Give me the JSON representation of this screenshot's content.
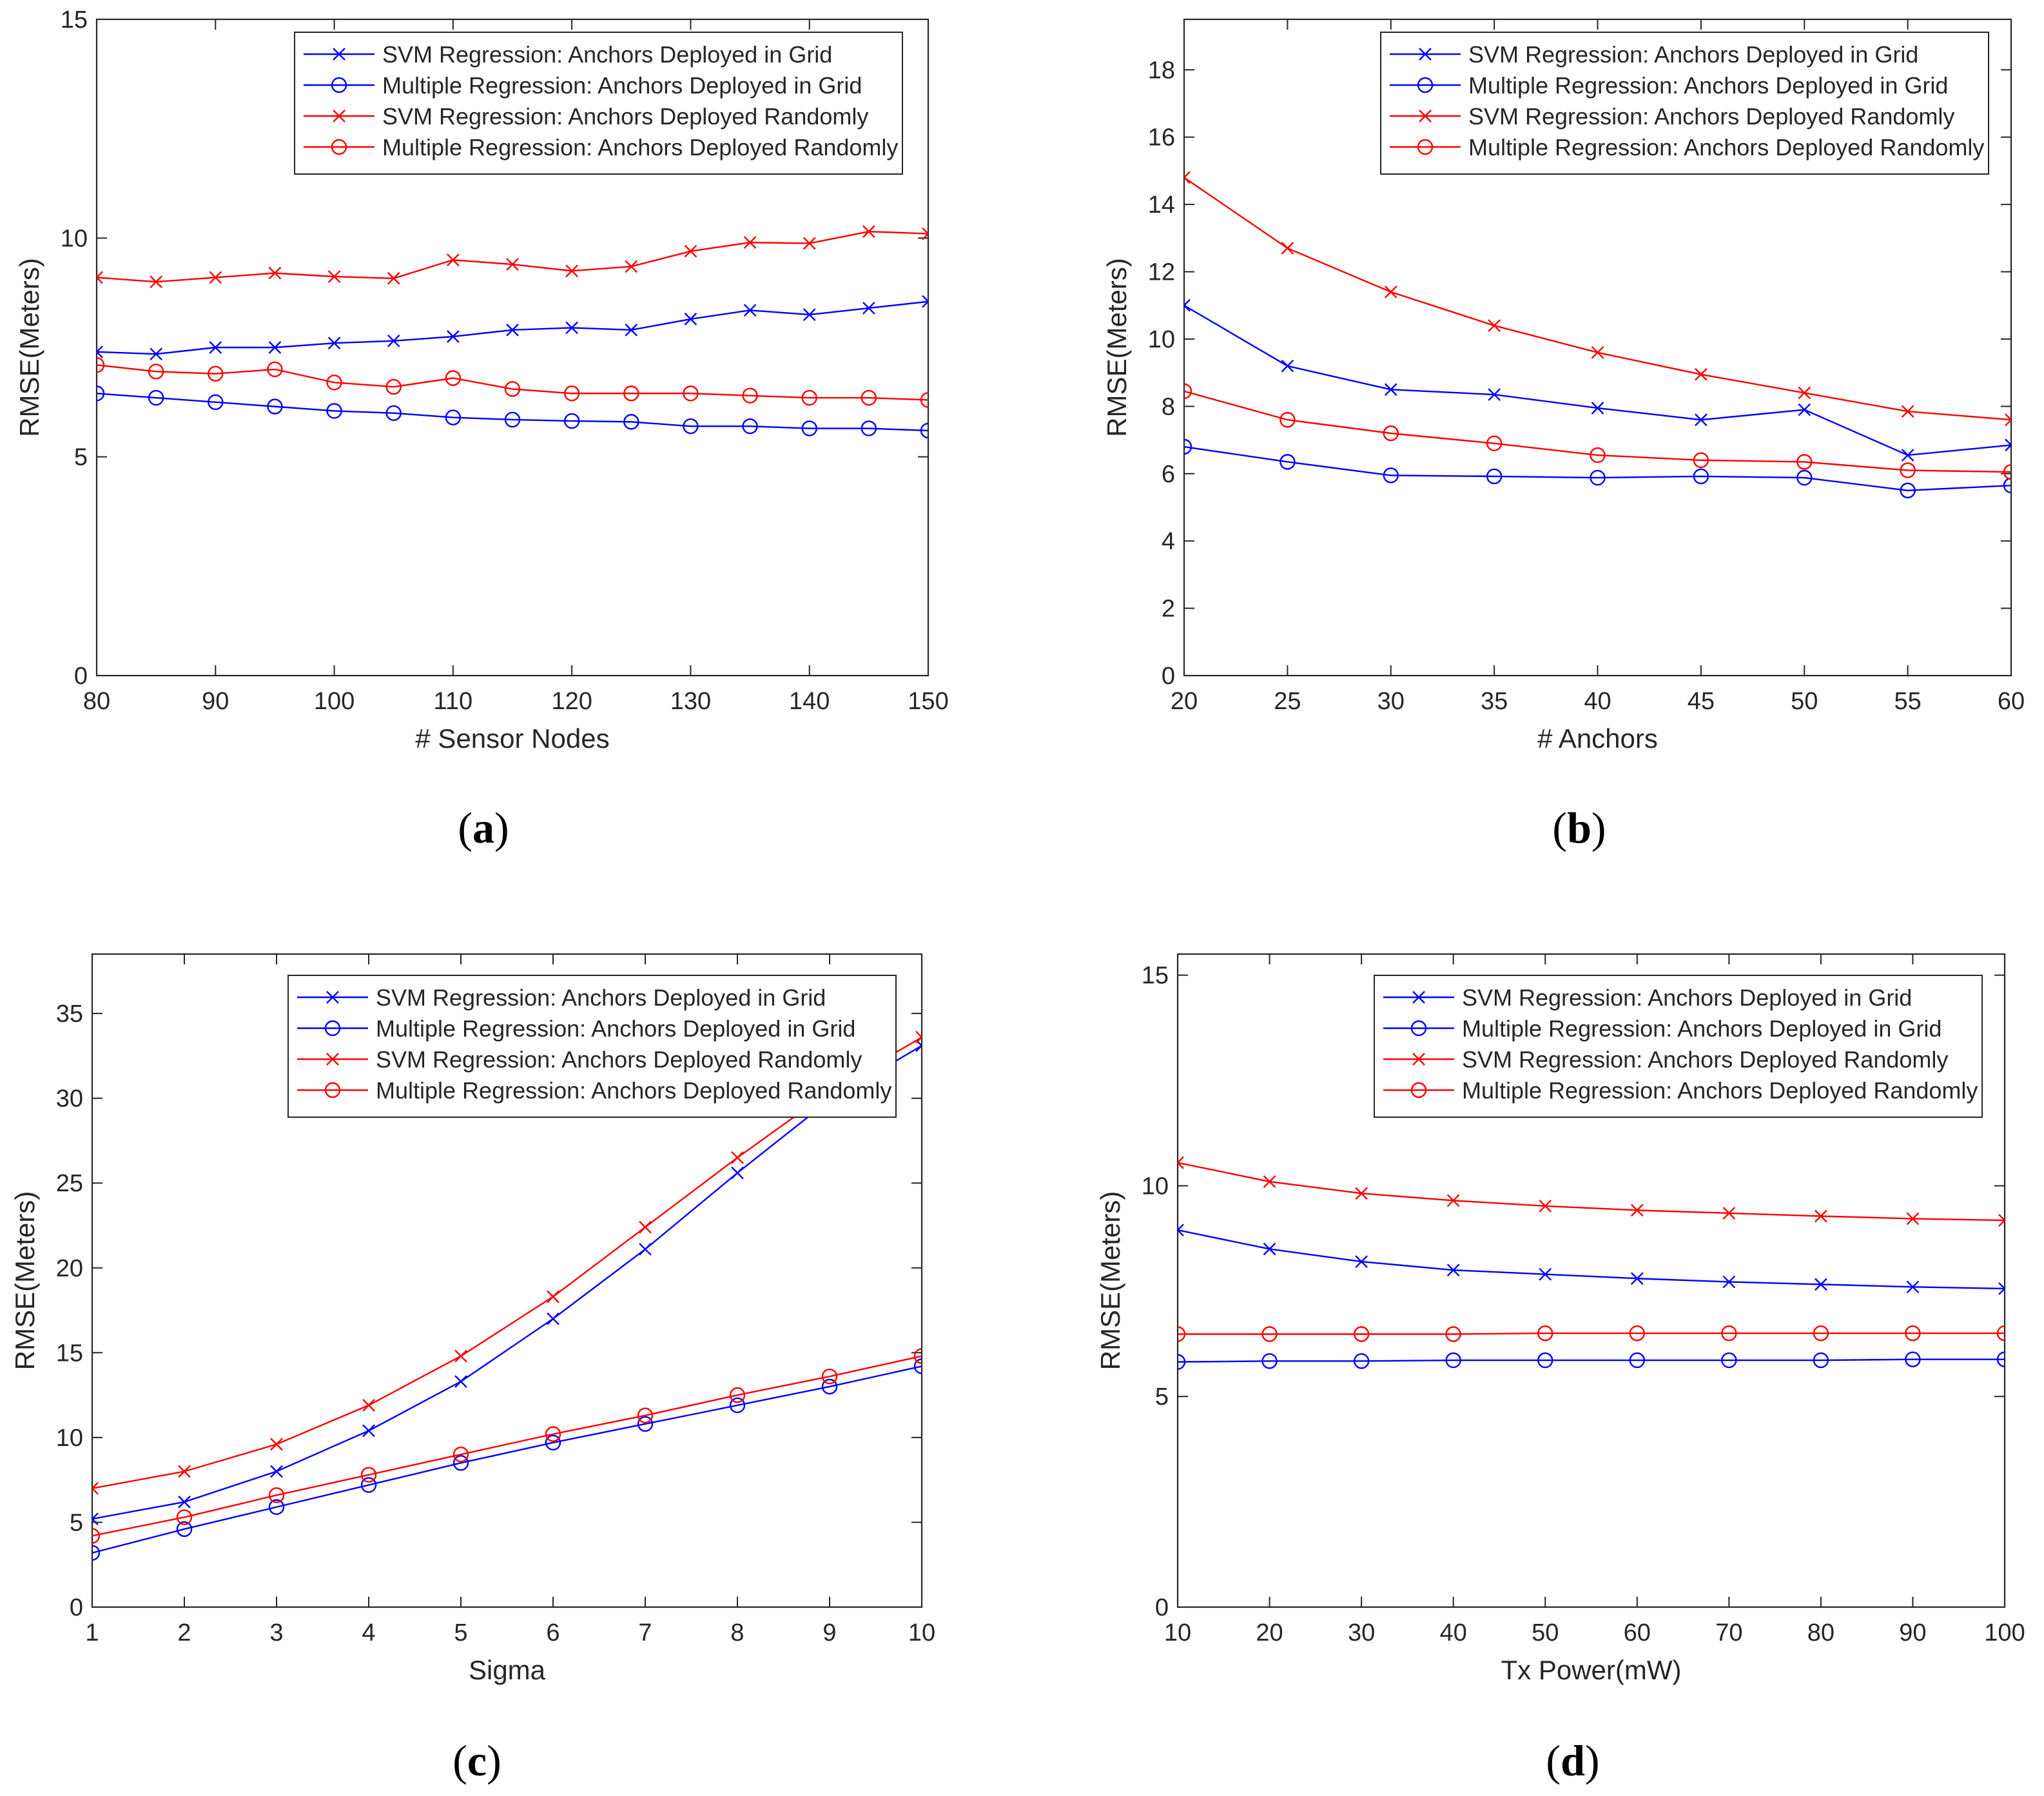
{
  "chart_data": [
    {
      "type": "line",
      "panel_label": "a",
      "xlabel": "# Sensor Nodes",
      "ylabel": "RMSE(Meters)",
      "xlim": [
        80,
        150
      ],
      "ylim": [
        0,
        15
      ],
      "xticks": [
        80,
        90,
        100,
        110,
        120,
        130,
        140,
        150
      ],
      "yticks": [
        0,
        5,
        10,
        15
      ],
      "grid": false,
      "legend": "top-right",
      "x": [
        80,
        85,
        90,
        95,
        100,
        105,
        110,
        115,
        120,
        125,
        130,
        135,
        140,
        145,
        150
      ],
      "series": [
        {
          "name": "SVM Regression: Anchors Deployed in Grid",
          "color": "#0000ff",
          "marker": "x",
          "values": [
            7.4,
            7.35,
            7.5,
            7.5,
            7.6,
            7.65,
            7.75,
            7.9,
            7.95,
            7.9,
            8.15,
            8.35,
            8.25,
            8.4,
            8.55
          ]
        },
        {
          "name": "Multiple Regression: Anchors Deployed in Grid",
          "color": "#0000ff",
          "marker": "o",
          "values": [
            6.45,
            6.35,
            6.25,
            6.15,
            6.05,
            6.0,
            5.9,
            5.85,
            5.82,
            5.8,
            5.7,
            5.7,
            5.65,
            5.65,
            5.6
          ]
        },
        {
          "name": "SVM Regression: Anchors Deployed Randomly",
          "color": "#ff0000",
          "marker": "x",
          "values": [
            9.1,
            9.0,
            9.1,
            9.2,
            9.12,
            9.08,
            9.5,
            9.4,
            9.25,
            9.35,
            9.7,
            9.9,
            9.88,
            10.15,
            10.1
          ]
        },
        {
          "name": "Multiple Regression: Anchors Deployed Randomly",
          "color": "#ff0000",
          "marker": "o",
          "values": [
            7.1,
            6.95,
            6.9,
            7.0,
            6.7,
            6.6,
            6.8,
            6.55,
            6.45,
            6.45,
            6.45,
            6.4,
            6.35,
            6.35,
            6.3
          ]
        }
      ]
    },
    {
      "type": "line",
      "panel_label": "b",
      "xlabel": "# Anchors",
      "ylabel": "RMSE(Meters)",
      "xlim": [
        20,
        60
      ],
      "ylim": [
        0,
        19.5
      ],
      "xticks": [
        20,
        25,
        30,
        35,
        40,
        45,
        50,
        55,
        60
      ],
      "yticks": [
        0,
        2,
        4,
        6,
        8,
        10,
        12,
        14,
        16,
        18
      ],
      "grid": false,
      "legend": "top-right",
      "x": [
        20,
        25,
        30,
        35,
        40,
        45,
        50,
        55,
        60
      ],
      "series": [
        {
          "name": "SVM Regression: Anchors Deployed in Grid",
          "color": "#0000ff",
          "marker": "x",
          "values": [
            11.0,
            9.2,
            8.5,
            8.35,
            7.95,
            7.6,
            7.9,
            6.55,
            6.85
          ]
        },
        {
          "name": "Multiple Regression: Anchors Deployed in Grid",
          "color": "#0000ff",
          "marker": "o",
          "values": [
            6.8,
            6.35,
            5.95,
            5.92,
            5.88,
            5.92,
            5.88,
            5.5,
            5.65
          ]
        },
        {
          "name": "SVM Regression: Anchors Deployed Randomly",
          "color": "#ff0000",
          "marker": "x",
          "values": [
            14.8,
            12.7,
            11.4,
            10.4,
            9.6,
            8.95,
            8.4,
            7.85,
            7.6
          ]
        },
        {
          "name": "Multiple Regression: Anchors Deployed Randomly",
          "color": "#ff0000",
          "marker": "o",
          "values": [
            8.45,
            7.6,
            7.2,
            6.9,
            6.55,
            6.4,
            6.35,
            6.1,
            6.05
          ]
        }
      ]
    },
    {
      "type": "line",
      "panel_label": "c",
      "xlabel": "Sigma",
      "ylabel": "RMSE(Meters)",
      "xlim": [
        1,
        10
      ],
      "ylim": [
        0,
        38.5
      ],
      "xticks": [
        1,
        2,
        3,
        4,
        5,
        6,
        7,
        8,
        9,
        10
      ],
      "yticks": [
        0,
        5,
        10,
        15,
        20,
        25,
        30,
        35
      ],
      "grid": false,
      "legend": "top-right",
      "x": [
        1,
        2,
        3,
        4,
        5,
        6,
        7,
        8,
        9,
        10
      ],
      "series": [
        {
          "name": "SVM Regression: Anchors Deployed in Grid",
          "color": "#0000ff",
          "marker": "x",
          "values": [
            5.2,
            6.2,
            8.0,
            10.4,
            13.3,
            17.0,
            21.1,
            25.6,
            29.9,
            33.1
          ]
        },
        {
          "name": "Multiple Regression: Anchors Deployed in Grid",
          "color": "#0000ff",
          "marker": "o",
          "values": [
            3.2,
            4.6,
            5.9,
            7.2,
            8.5,
            9.7,
            10.8,
            11.9,
            13.0,
            14.2
          ]
        },
        {
          "name": "SVM Regression: Anchors Deployed Randomly",
          "color": "#ff0000",
          "marker": "x",
          "values": [
            7.0,
            8.0,
            9.6,
            11.9,
            14.8,
            18.3,
            22.4,
            26.5,
            30.4,
            33.6
          ]
        },
        {
          "name": "Multiple Regression: Anchors Deployed Randomly",
          "color": "#ff0000",
          "marker": "o",
          "values": [
            4.2,
            5.3,
            6.6,
            7.8,
            9.0,
            10.2,
            11.3,
            12.5,
            13.6,
            14.8
          ]
        }
      ]
    },
    {
      "type": "line",
      "panel_label": "d",
      "xlabel": "Tx Power(mW)",
      "ylabel": "RMSE(Meters)",
      "xlim": [
        10,
        100
      ],
      "ylim": [
        0,
        15.5
      ],
      "xticks": [
        10,
        20,
        30,
        40,
        50,
        60,
        70,
        80,
        90,
        100
      ],
      "yticks": [
        0,
        5,
        10,
        15
      ],
      "grid": false,
      "legend": "top-right",
      "x": [
        10,
        20,
        30,
        40,
        50,
        60,
        70,
        80,
        90,
        100
      ],
      "series": [
        {
          "name": "SVM Regression: Anchors Deployed in Grid",
          "color": "#0000ff",
          "marker": "x",
          "values": [
            8.95,
            8.5,
            8.2,
            8.0,
            7.9,
            7.8,
            7.72,
            7.66,
            7.6,
            7.56
          ]
        },
        {
          "name": "Multiple Regression: Anchors Deployed in Grid",
          "color": "#0000ff",
          "marker": "o",
          "values": [
            5.82,
            5.84,
            5.84,
            5.86,
            5.86,
            5.86,
            5.86,
            5.86,
            5.88,
            5.88
          ]
        },
        {
          "name": "SVM Regression: Anchors Deployed Randomly",
          "color": "#ff0000",
          "marker": "x",
          "values": [
            10.55,
            10.1,
            9.82,
            9.65,
            9.52,
            9.42,
            9.35,
            9.28,
            9.22,
            9.18
          ]
        },
        {
          "name": "Multiple Regression: Anchors Deployed Randomly",
          "color": "#ff0000",
          "marker": "o",
          "values": [
            6.48,
            6.48,
            6.48,
            6.48,
            6.5,
            6.5,
            6.5,
            6.5,
            6.5,
            6.5
          ]
        }
      ]
    }
  ]
}
